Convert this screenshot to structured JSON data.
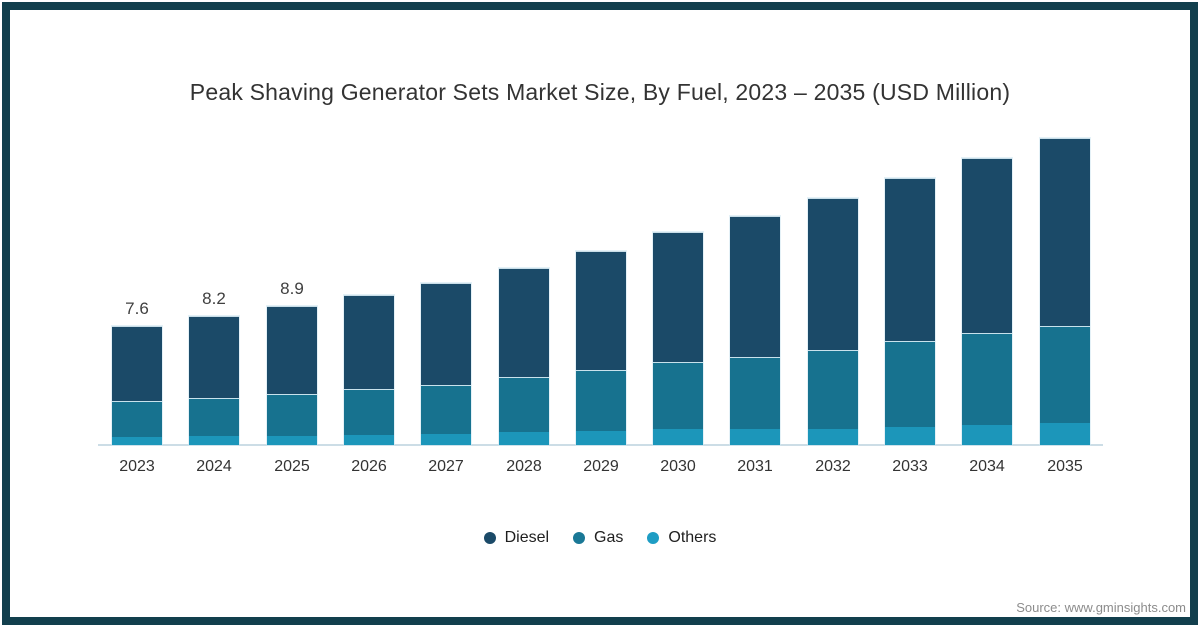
{
  "title": "Peak Shaving Generator Sets Market Size, By Fuel, 2023 – 2035 (USD Million)",
  "source": "Source: www.gminsights.com",
  "colors": {
    "frame_border": "#123f4d",
    "axis_line": "#ccdde6",
    "diesel": "#1b4a68",
    "gas": "#17728f",
    "others": "#1c96ba"
  },
  "legend": {
    "items": [
      {
        "id": "diesel",
        "label": "Diesel",
        "color": "#1b4a68"
      },
      {
        "id": "gas",
        "label": "Gas",
        "color": "#1a7896"
      },
      {
        "id": "others",
        "label": "Others",
        "color": "#1e9dc4"
      }
    ]
  },
  "chart_data": {
    "type": "bar",
    "stacked": true,
    "title": "Peak Shaving Generator Sets Market Size, By Fuel, 2023 – 2035 (USD Million)",
    "unit": "USD Million",
    "categories": [
      "2023",
      "2024",
      "2025",
      "2026",
      "2027",
      "2028",
      "2029",
      "2030",
      "2031",
      "2032",
      "2033",
      "2034",
      "2035"
    ],
    "series": [
      {
        "name": "Diesel",
        "color": "#1b4a68",
        "values": [
          4.8,
          5.2,
          5.6,
          6.0,
          6.5,
          6.95,
          7.6,
          8.25,
          9.0,
          9.7,
          10.4,
          11.15,
          11.95
        ]
      },
      {
        "name": "Gas",
        "color": "#17728f",
        "values": [
          2.3,
          2.45,
          2.7,
          2.95,
          3.1,
          3.5,
          3.9,
          4.25,
          4.6,
          5.05,
          5.5,
          5.85,
          6.2
        ]
      },
      {
        "name": "Others",
        "color": "#1c96ba",
        "values": [
          0.5,
          0.55,
          0.6,
          0.65,
          0.7,
          0.85,
          0.9,
          1.0,
          1.0,
          1.05,
          1.15,
          1.3,
          1.4
        ]
      }
    ],
    "totals": [
      7.6,
      8.2,
      8.9,
      9.6,
      10.3,
      11.3,
      12.4,
      13.5,
      14.6,
      15.8,
      17.1,
      18.3,
      19.6
    ],
    "data_labels": [
      "7.6",
      "8.2",
      "8.9",
      "",
      "",
      "",
      "",
      "",
      "",
      "",
      "",
      "",
      ""
    ],
    "ylim": [
      0,
      19.6
    ],
    "grid": false,
    "y_axis_visible": false,
    "legend_position": "bottom"
  }
}
